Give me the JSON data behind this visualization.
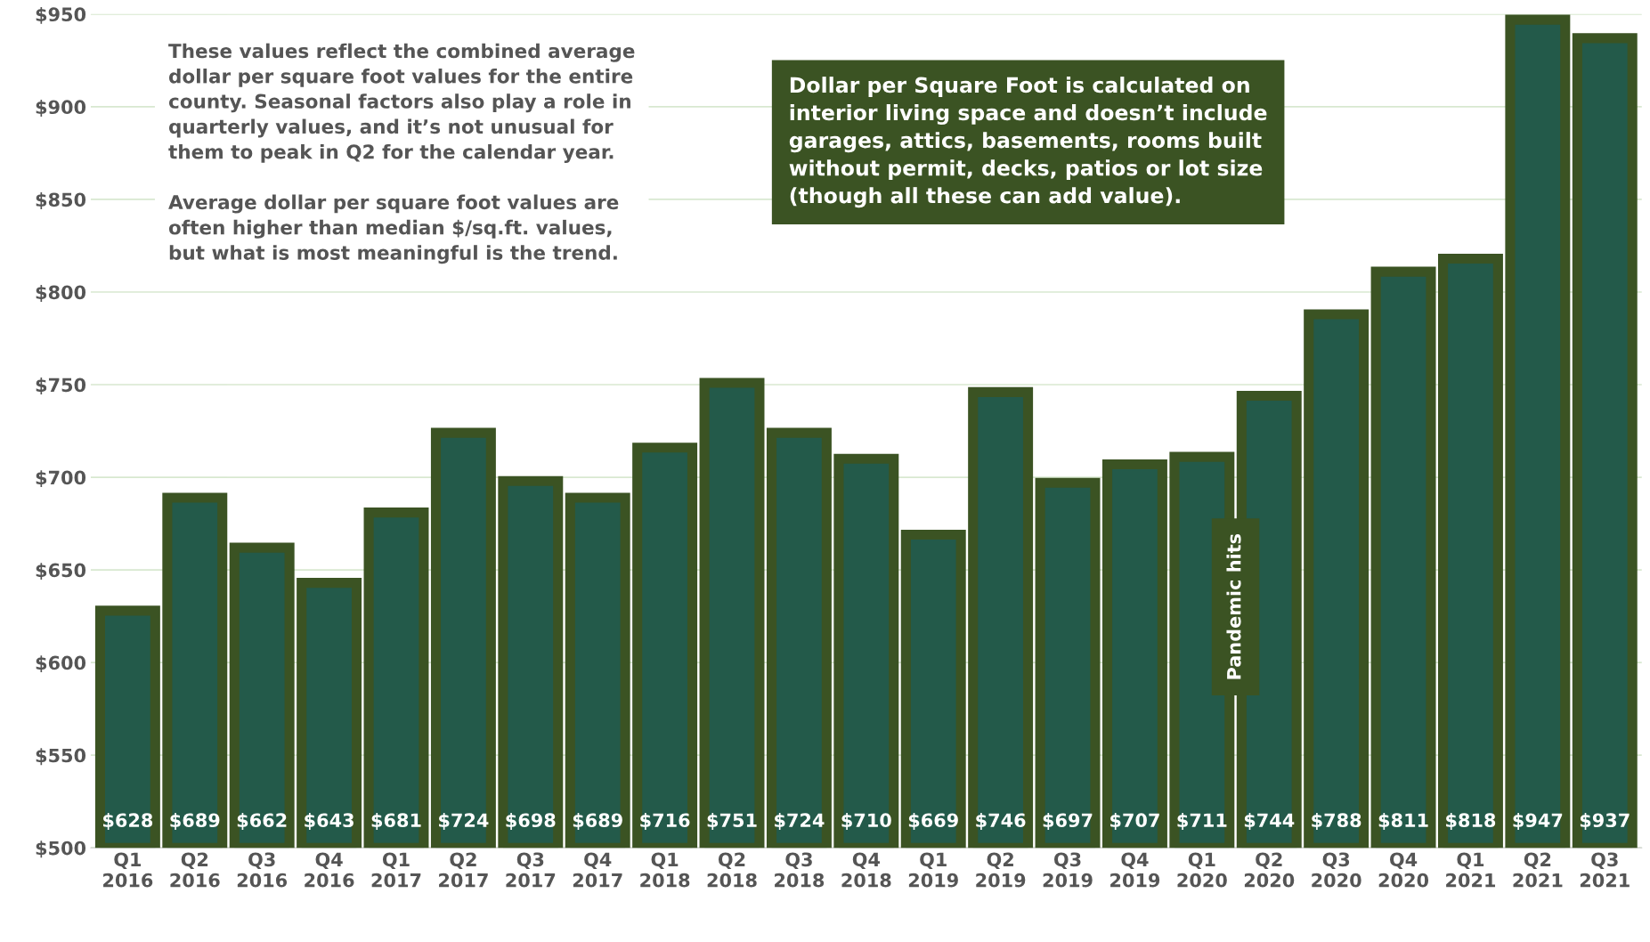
{
  "chart_data": {
    "type": "bar",
    "categories": [
      "Q1\n2016",
      "Q2\n2016",
      "Q3\n2016",
      "Q4\n2016",
      "Q1\n2017",
      "Q2\n2017",
      "Q3\n2017",
      "Q4\n2017",
      "Q1\n2018",
      "Q2\n2018",
      "Q3\n2018",
      "Q4\n2018",
      "Q1\n2019",
      "Q2\n2019",
      "Q3\n2019",
      "Q4\n2019",
      "Q1\n2020",
      "Q2\n2020",
      "Q3\n2020",
      "Q4\n2020",
      "Q1\n2021",
      "Q2\n2021",
      "Q3\n2021"
    ],
    "values": [
      628,
      689,
      662,
      643,
      681,
      724,
      698,
      689,
      716,
      751,
      724,
      710,
      669,
      746,
      697,
      707,
      711,
      744,
      788,
      811,
      818,
      947,
      937
    ],
    "value_labels": [
      "$628",
      "$689",
      "$662",
      "$643",
      "$681",
      "$724",
      "$698",
      "$689",
      "$716",
      "$751",
      "$724",
      "$710",
      "$669",
      "$746",
      "$697",
      "$707",
      "$711",
      "$744",
      "$788",
      "$811",
      "$818",
      "$947",
      "$937"
    ],
    "color": "#235a4a",
    "ylim": [
      500,
      950
    ],
    "yticks": [
      {
        "value": 500,
        "label": "$500"
      },
      {
        "value": 550,
        "label": "$550"
      },
      {
        "value": 600,
        "label": "$600"
      },
      {
        "value": 650,
        "label": "$650"
      },
      {
        "value": 700,
        "label": "$700"
      },
      {
        "value": 750,
        "label": "$750"
      },
      {
        "value": 800,
        "label": "$800"
      },
      {
        "value": 850,
        "label": "$850"
      },
      {
        "value": 900,
        "label": "$900"
      },
      {
        "value": 950,
        "label": "$950"
      }
    ],
    "grid": "y",
    "annotations": [
      "These values reflect the combined average\ndollar per square foot values for the entire\ncounty. Seasonal factors also play a role in\nquarterly values, and it’s not unusual for\nthem to peak in Q2 for the calendar year.\n\nAverage dollar per square foot values are\noften higher than median $/sq.ft. values,\nbut what is most meaningful is the trend.",
      "Dollar per Square Foot is calculated on\ninterior living space and doesn’t include\ngarages, attics, basements, rooms built\nwithout permit, decks, patios or lot size\n(though all these can add value).",
      "Pandemic hits"
    ]
  }
}
